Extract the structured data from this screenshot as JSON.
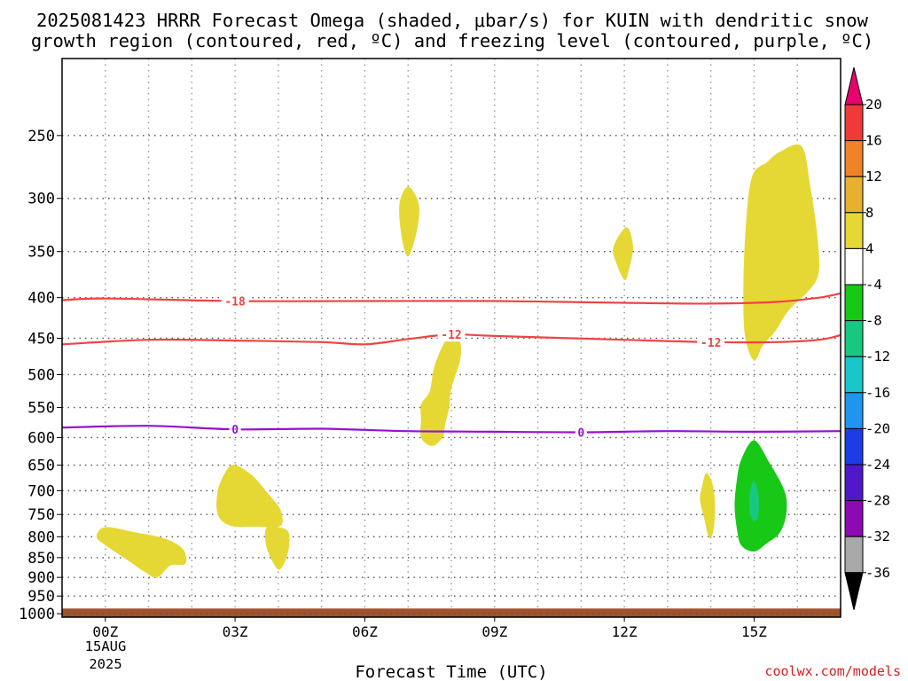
{
  "chart_data": {
    "type": "contour",
    "title_lines": [
      "2025081423 HRRR Forecast Omega (shaded, μbar/s) for KUIN with dendritic snow",
      "growth region (contoured, red, ºC) and freezing level (contoured, purple, ºC)"
    ],
    "xlabel": "Forecast Time (UTC)",
    "ylabel": "",
    "x_ticks": [
      {
        "hour": 0,
        "label": "00Z"
      },
      {
        "hour": 3,
        "label": "03Z"
      },
      {
        "hour": 6,
        "label": "06Z"
      },
      {
        "hour": 9,
        "label": "09Z"
      },
      {
        "hour": 12,
        "label": "12Z"
      },
      {
        "hour": 15,
        "label": "15Z"
      }
    ],
    "x_sub_labels": [
      "15AUG",
      "2025"
    ],
    "xlim": [
      -1,
      17
    ],
    "y_ticks": [
      250,
      300,
      350,
      400,
      450,
      500,
      550,
      600,
      650,
      700,
      750,
      800,
      850,
      900,
      950,
      1000
    ],
    "ylim_hpa": [
      200,
      1010
    ],
    "y_scale": "log-pressure (inverted)",
    "grid": true,
    "ground_level_hpa": 985,
    "ground_color": "#a0522d",
    "colorbar": {
      "labels": [
        "20",
        "16",
        "12",
        "8",
        "4",
        "-4",
        "-8",
        "-12",
        "-16",
        "-20",
        "-24",
        "-28",
        "-32",
        "-36"
      ],
      "colors": [
        "#e8006e",
        "#f03a3a",
        "#f08228",
        "#e8b030",
        "#e6d834",
        "#ffffff",
        "#17c817",
        "#18c880",
        "#18c8c8",
        "#1e96f0",
        "#1e3ce6",
        "#5018c8",
        "#8c0ab4",
        "#a8a8a8",
        "#000000"
      ]
    },
    "series": [
      {
        "name": "-18",
        "color": "#ef4444",
        "points": [
          [
            -1,
            403
          ],
          [
            0,
            401
          ],
          [
            3,
            404
          ],
          [
            6,
            404
          ],
          [
            9,
            404
          ],
          [
            12,
            406
          ],
          [
            14,
            407
          ],
          [
            15.5,
            405
          ],
          [
            16.5,
            400
          ],
          [
            17,
            395
          ]
        ],
        "labels": [
          {
            "x": 3,
            "text": "-18"
          }
        ]
      },
      {
        "name": "-12",
        "color": "#ef4444",
        "points": [
          [
            -1,
            458
          ],
          [
            1,
            452
          ],
          [
            3,
            453
          ],
          [
            5,
            455
          ],
          [
            6,
            458
          ],
          [
            7,
            451
          ],
          [
            8,
            445
          ],
          [
            9,
            447
          ],
          [
            12,
            452
          ],
          [
            14,
            455
          ],
          [
            15.5,
            455
          ],
          [
            16.5,
            452
          ],
          [
            17,
            446
          ]
        ],
        "labels": [
          {
            "x": 8,
            "text": "-12"
          },
          {
            "x": 14,
            "text": "-12"
          }
        ]
      },
      {
        "name": "0",
        "color": "#9810d0",
        "points": [
          [
            -1,
            583
          ],
          [
            1,
            580
          ],
          [
            3,
            586
          ],
          [
            5,
            585
          ],
          [
            7,
            589
          ],
          [
            9,
            590
          ],
          [
            11,
            591
          ],
          [
            13,
            589
          ],
          [
            15,
            590
          ],
          [
            17,
            589
          ]
        ],
        "labels": [
          {
            "x": 3,
            "text": "0"
          },
          {
            "x": 11,
            "text": "0"
          }
        ]
      }
    ],
    "shaded_regions": [
      {
        "level": "4",
        "color": "#e6d834",
        "points": [
          [
            7.0,
            290
          ],
          [
            7.25,
            305
          ],
          [
            7.2,
            330
          ],
          [
            7.0,
            355
          ],
          [
            6.85,
            335
          ],
          [
            6.8,
            305
          ]
        ]
      },
      {
        "level": "4",
        "color": "#e6d834",
        "points": [
          [
            12.05,
            326
          ],
          [
            12.2,
            345
          ],
          [
            12.1,
            370
          ],
          [
            12.0,
            380
          ],
          [
            11.8,
            360
          ],
          [
            11.75,
            345
          ]
        ]
      },
      {
        "level": "4",
        "color": "#e6d834",
        "points": [
          [
            16.1,
            258
          ],
          [
            16.3,
            290
          ],
          [
            16.45,
            330
          ],
          [
            16.5,
            370
          ],
          [
            16.3,
            390
          ],
          [
            15.8,
            415
          ],
          [
            15.5,
            440
          ],
          [
            15.2,
            460
          ],
          [
            15.0,
            480
          ],
          [
            14.8,
            450
          ],
          [
            14.75,
            400
          ],
          [
            14.8,
            330
          ],
          [
            14.95,
            282
          ],
          [
            15.3,
            270
          ],
          [
            15.6,
            262
          ]
        ]
      },
      {
        "level": "4",
        "color": "#e6d834",
        "points": [
          [
            8.0,
            445
          ],
          [
            8.2,
            455
          ],
          [
            8.2,
            480
          ],
          [
            8.0,
            520
          ],
          [
            7.95,
            550
          ],
          [
            7.85,
            580
          ],
          [
            7.8,
            600
          ],
          [
            7.55,
            615
          ],
          [
            7.3,
            600
          ],
          [
            7.3,
            570
          ],
          [
            7.3,
            545
          ],
          [
            7.5,
            525
          ],
          [
            7.6,
            490
          ],
          [
            7.8,
            460
          ]
        ]
      },
      {
        "level": "4",
        "color": "#e6d834",
        "points": [
          [
            3.0,
            650
          ],
          [
            3.4,
            670
          ],
          [
            3.8,
            710
          ],
          [
            4.05,
            740
          ],
          [
            4.05,
            775
          ],
          [
            3.5,
            777
          ],
          [
            2.9,
            775
          ],
          [
            2.6,
            750
          ],
          [
            2.6,
            700
          ],
          [
            2.8,
            660
          ]
        ]
      },
      {
        "level": "4",
        "color": "#e6d834",
        "points": [
          [
            3.75,
            778
          ],
          [
            4.2,
            785
          ],
          [
            4.25,
            820
          ],
          [
            4.15,
            860
          ],
          [
            4.0,
            880
          ],
          [
            3.8,
            845
          ],
          [
            3.7,
            810
          ]
        ]
      },
      {
        "level": "4",
        "color": "#e6d834",
        "points": [
          [
            0.0,
            778
          ],
          [
            0.7,
            790
          ],
          [
            1.4,
            805
          ],
          [
            1.8,
            830
          ],
          [
            1.85,
            865
          ],
          [
            1.5,
            870
          ],
          [
            1.2,
            900
          ],
          [
            0.9,
            885
          ],
          [
            0.5,
            855
          ],
          [
            0.0,
            820
          ],
          [
            -0.2,
            800
          ]
        ]
      },
      {
        "level": "4",
        "color": "#e6d834",
        "points": [
          [
            13.9,
            665
          ],
          [
            14.05,
            690
          ],
          [
            14.1,
            740
          ],
          [
            14.05,
            790
          ],
          [
            13.95,
            800
          ],
          [
            13.85,
            760
          ],
          [
            13.75,
            720
          ],
          [
            13.8,
            690
          ]
        ]
      },
      {
        "level": "-4",
        "color": "#17c817",
        "points": [
          [
            15.0,
            605
          ],
          [
            15.35,
            645
          ],
          [
            15.7,
            700
          ],
          [
            15.75,
            745
          ],
          [
            15.6,
            790
          ],
          [
            15.3,
            815
          ],
          [
            15.0,
            835
          ],
          [
            14.7,
            820
          ],
          [
            14.6,
            780
          ],
          [
            14.55,
            730
          ],
          [
            14.6,
            680
          ],
          [
            14.7,
            640
          ]
        ]
      },
      {
        "level": "-8",
        "color": "#18c880",
        "points": [
          [
            15.0,
            680
          ],
          [
            15.1,
            710
          ],
          [
            15.1,
            750
          ],
          [
            15.0,
            765
          ],
          [
            14.9,
            745
          ],
          [
            14.9,
            705
          ]
        ]
      }
    ]
  },
  "footer": {
    "credit": "coolwx.com/models"
  }
}
